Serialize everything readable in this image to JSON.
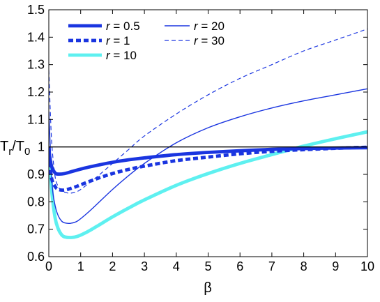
{
  "chart_data": {
    "type": "line",
    "xlabel": "β",
    "ylabel": {
      "main": "T",
      "sub1": "r",
      "slash": "/T",
      "sub2": "0"
    },
    "xlim": [
      0,
      10
    ],
    "ylim": [
      0.6,
      1.5
    ],
    "xticks": [
      0,
      1,
      2,
      3,
      4,
      5,
      6,
      7,
      8,
      9,
      10
    ],
    "xtick_labels": [
      "0",
      "1",
      "2",
      "3",
      "4",
      "5",
      "6",
      "7",
      "8",
      "9",
      "10"
    ],
    "yticks": [
      0.6,
      0.7,
      0.8,
      0.9,
      1.0,
      1.1,
      1.2,
      1.3,
      1.4,
      1.5
    ],
    "ytick_labels": [
      "0.6",
      "0.7",
      "0.8",
      "0.9",
      "1",
      "1.1",
      "1.2",
      "1.3",
      "1.4",
      "1.5"
    ],
    "grid": false,
    "legend_position": "top-left",
    "reference_line": {
      "y": 1.0,
      "color": "#000000"
    },
    "series": [
      {
        "name": "r = 0.5",
        "color": "#1a35e0",
        "style": "solid-thick",
        "x": [
          0.0,
          0.05,
          0.1,
          0.2,
          0.3,
          0.5,
          0.8,
          1.2,
          1.6,
          2.0,
          2.5,
          3.0,
          4.0,
          5.0,
          6.0,
          7.0,
          8.0,
          9.0,
          10.0
        ],
        "y": [
          0.99,
          0.95,
          0.925,
          0.905,
          0.901,
          0.903,
          0.913,
          0.925,
          0.935,
          0.944,
          0.953,
          0.96,
          0.972,
          0.98,
          0.986,
          0.991,
          0.994,
          0.996,
          0.997
        ]
      },
      {
        "name": "r = 1",
        "color": "#1a35e0",
        "style": "dashed-thick",
        "x": [
          0.0,
          0.05,
          0.1,
          0.2,
          0.3,
          0.5,
          0.8,
          1.0,
          1.5,
          2.0,
          2.5,
          3.0,
          4.0,
          5.0,
          6.0,
          7.0,
          8.0,
          9.0,
          10.0
        ],
        "y": [
          1.0,
          0.92,
          0.88,
          0.855,
          0.845,
          0.843,
          0.853,
          0.862,
          0.884,
          0.903,
          0.918,
          0.93,
          0.95,
          0.963,
          0.975,
          0.984,
          0.99,
          0.995,
          0.999
        ]
      },
      {
        "name": "r = 10",
        "color": "#5ef0f0",
        "style": "solid-thick",
        "x": [
          0.0,
          0.1,
          0.2,
          0.3,
          0.4,
          0.5,
          0.7,
          0.9,
          1.2,
          1.5,
          2.0,
          2.5,
          3.0,
          4.0,
          5.0,
          6.0,
          7.0,
          8.0,
          9.0,
          10.0
        ],
        "y": [
          0.99,
          0.83,
          0.74,
          0.7,
          0.68,
          0.672,
          0.67,
          0.674,
          0.69,
          0.71,
          0.745,
          0.777,
          0.807,
          0.86,
          0.903,
          0.94,
          0.972,
          1.003,
          1.03,
          1.055
        ]
      },
      {
        "name": "r = 20",
        "color": "#1a35e0",
        "style": "solid-thin",
        "x": [
          0.0,
          0.1,
          0.2,
          0.3,
          0.4,
          0.5,
          0.7,
          0.9,
          1.2,
          1.5,
          2.0,
          2.5,
          3.0,
          4.0,
          5.0,
          6.0,
          7.0,
          8.0,
          9.0,
          10.0
        ],
        "y": [
          1.13,
          0.87,
          0.785,
          0.748,
          0.73,
          0.723,
          0.722,
          0.73,
          0.758,
          0.79,
          0.845,
          0.895,
          0.94,
          1.015,
          1.07,
          1.11,
          1.142,
          1.168,
          1.19,
          1.212
        ]
      },
      {
        "name": "r = 30",
        "color": "#1a35e0",
        "style": "dashed-thin",
        "x": [
          0.0,
          0.05,
          0.1,
          0.2,
          0.3,
          0.4,
          0.6,
          0.8,
          1.0,
          1.5,
          2.0,
          2.5,
          3.0,
          4.0,
          5.0,
          6.0,
          7.0,
          8.0,
          9.0,
          10.0
        ],
        "y": [
          1.28,
          1.12,
          1.0,
          0.89,
          0.855,
          0.84,
          0.832,
          0.834,
          0.845,
          0.89,
          0.94,
          0.99,
          1.04,
          1.12,
          1.19,
          1.25,
          1.3,
          1.35,
          1.39,
          1.43
        ]
      }
    ]
  }
}
